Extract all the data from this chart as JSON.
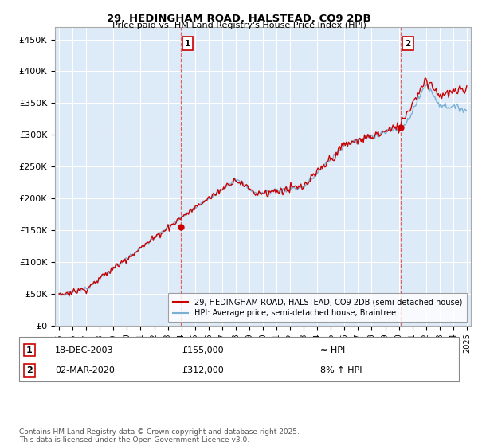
{
  "title1": "29, HEDINGHAM ROAD, HALSTEAD, CO9 2DB",
  "title2": "Price paid vs. HM Land Registry's House Price Index (HPI)",
  "ylabel_ticks": [
    "£0",
    "£50K",
    "£100K",
    "£150K",
    "£200K",
    "£250K",
    "£300K",
    "£350K",
    "£400K",
    "£450K"
  ],
  "ytick_values": [
    0,
    50000,
    100000,
    150000,
    200000,
    250000,
    300000,
    350000,
    400000,
    450000
  ],
  "ylim": [
    0,
    470000
  ],
  "xlim_start": 1994.7,
  "xlim_end": 2025.3,
  "xtick_years": [
    1995,
    1996,
    1997,
    1998,
    1999,
    2000,
    2001,
    2002,
    2003,
    2004,
    2005,
    2006,
    2007,
    2008,
    2009,
    2010,
    2011,
    2012,
    2013,
    2014,
    2015,
    2016,
    2017,
    2018,
    2019,
    2020,
    2021,
    2022,
    2023,
    2024,
    2025
  ],
  "purchase1_x": 2003.96,
  "purchase1_y": 155000,
  "purchase1_label": "1",
  "purchase2_x": 2020.17,
  "purchase2_y": 312000,
  "purchase2_label": "2",
  "vline_color": "#e06060",
  "red_line_color": "#cc0000",
  "blue_line_color": "#7ab0d4",
  "legend_label1": "29, HEDINGHAM ROAD, HALSTEAD, CO9 2DB (semi-detached house)",
  "legend_label2": "HPI: Average price, semi-detached house, Braintree",
  "annotation1_date": "18-DEC-2003",
  "annotation1_price": "£155,000",
  "annotation1_hpi": "≈ HPI",
  "annotation2_date": "02-MAR-2020",
  "annotation2_price": "£312,000",
  "annotation2_hpi": "8% ↑ HPI",
  "footer": "Contains HM Land Registry data © Crown copyright and database right 2025.\nThis data is licensed under the Open Government Licence v3.0.",
  "plot_bg_color": "#ddeaf7"
}
